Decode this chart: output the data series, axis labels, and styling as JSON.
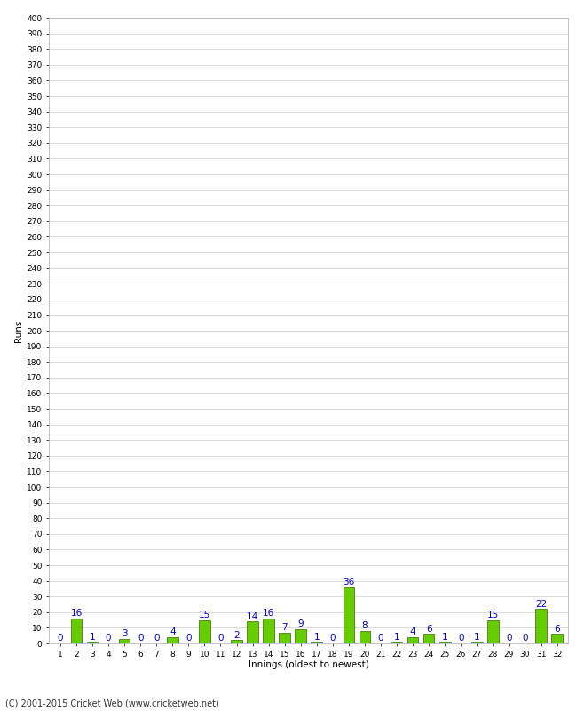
{
  "xlabel": "Innings (oldest to newest)",
  "ylabel": "Runs",
  "innings": [
    1,
    2,
    3,
    4,
    5,
    6,
    7,
    8,
    9,
    10,
    11,
    12,
    13,
    14,
    15,
    16,
    17,
    18,
    19,
    20,
    21,
    22,
    23,
    24,
    25,
    26,
    27,
    28,
    29,
    30,
    31,
    32
  ],
  "values": [
    0,
    16,
    1,
    0,
    3,
    0,
    0,
    4,
    0,
    15,
    0,
    2,
    14,
    16,
    7,
    9,
    1,
    0,
    36,
    8,
    0,
    1,
    4,
    6,
    1,
    0,
    1,
    15,
    0,
    0,
    22,
    6
  ],
  "bar_color": "#66cc00",
  "bar_edge_color": "#336600",
  "label_color": "#0000cc",
  "ylim": [
    0,
    400
  ],
  "ytick_step": 10,
  "background_color": "#ffffff",
  "grid_color": "#cccccc",
  "footer": "(C) 2001-2015 Cricket Web (www.cricketweb.net)",
  "title_fontsize": 9,
  "label_fontsize": 7.5,
  "tick_fontsize": 6.5,
  "footer_fontsize": 7
}
